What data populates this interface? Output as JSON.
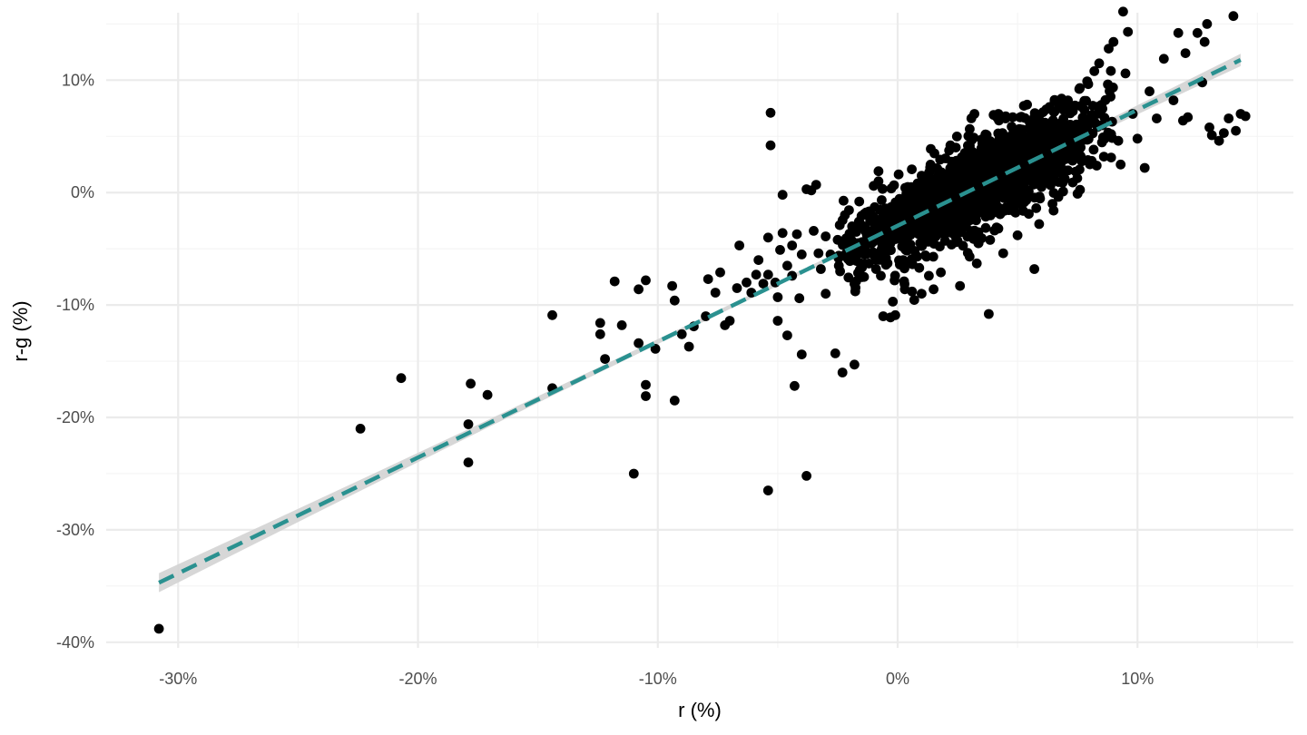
{
  "chart_data": {
    "type": "scatter",
    "title": "",
    "xlabel": "r (%)",
    "ylabel": "r-g (%)",
    "xlim": [
      -33,
      16.5
    ],
    "ylim": [
      -40.5,
      16
    ],
    "x_ticks": [
      {
        "value": -30,
        "label": "-30%"
      },
      {
        "value": -20,
        "label": "-20%"
      },
      {
        "value": -10,
        "label": "-10%"
      },
      {
        "value": 0,
        "label": "0%"
      },
      {
        "value": 10,
        "label": "10%"
      }
    ],
    "y_ticks": [
      {
        "value": -40,
        "label": "-40%"
      },
      {
        "value": -30,
        "label": "-30%"
      },
      {
        "value": -20,
        "label": "-20%"
      },
      {
        "value": -10,
        "label": "-10%"
      },
      {
        "value": 0,
        "label": "0%"
      },
      {
        "value": 10,
        "label": "10%"
      }
    ],
    "x_minor_grid": [
      -25,
      -15,
      -5,
      5,
      15
    ],
    "y_minor_grid": [
      -35,
      -25,
      -15,
      -5,
      5,
      15
    ],
    "grid": true,
    "legend": "none",
    "colors": {
      "points": "#000000",
      "fit_line": "#2a9190",
      "ribbon": "#d3d3d3",
      "grid_major": "#ebebeb",
      "grid_minor": "#f4f4f4",
      "tick_text": "#4d4d4d"
    },
    "fit": {
      "style": "dashed",
      "from": {
        "x": -30.8,
        "y": -34.7
      },
      "to": {
        "x": 14.3,
        "y": 11.8
      },
      "ribbon_halfwidth": [
        0.85,
        0.2,
        0.55
      ]
    },
    "point_seed": 1729,
    "cloud": {
      "n": 1650,
      "x_mean": 3.3,
      "x_sd": 2.4,
      "x_min": -2.5,
      "x_max": 9.0,
      "slope": 1.03,
      "intercept": -2.8,
      "resid_sd": 1.8
    },
    "points": [
      [
        -30.8,
        -38.8
      ],
      [
        -22.4,
        -21.0
      ],
      [
        -20.7,
        -16.5
      ],
      [
        -17.8,
        -17.0
      ],
      [
        -17.9,
        -20.6
      ],
      [
        -17.9,
        -24.0
      ],
      [
        -17.1,
        -18.0
      ],
      [
        -14.4,
        -10.9
      ],
      [
        -14.4,
        -17.4
      ],
      [
        -12.4,
        -11.6
      ],
      [
        -12.4,
        -12.6
      ],
      [
        -12.2,
        -14.8
      ],
      [
        -11.8,
        -7.9
      ],
      [
        -11.5,
        -11.8
      ],
      [
        -11.0,
        -25.0
      ],
      [
        -10.8,
        -8.6
      ],
      [
        -10.8,
        -13.4
      ],
      [
        -10.5,
        -7.8
      ],
      [
        -10.5,
        -17.1
      ],
      [
        -10.5,
        -18.1
      ],
      [
        -10.1,
        -13.9
      ],
      [
        -9.4,
        -8.3
      ],
      [
        -9.3,
        -9.6
      ],
      [
        -9.3,
        -18.5
      ],
      [
        -9.0,
        -12.6
      ],
      [
        -8.7,
        -13.7
      ],
      [
        -8.5,
        -11.9
      ],
      [
        -8.0,
        -11.0
      ],
      [
        -7.9,
        -7.7
      ],
      [
        -7.6,
        -8.9
      ],
      [
        -7.4,
        -7.1
      ],
      [
        -7.2,
        -11.8
      ],
      [
        -7.0,
        -11.4
      ],
      [
        -6.7,
        -8.5
      ],
      [
        -6.6,
        -4.7
      ],
      [
        -6.3,
        -8.0
      ],
      [
        -6.1,
        -8.9
      ],
      [
        -5.9,
        -7.3
      ],
      [
        -5.8,
        -6.0
      ],
      [
        -5.6,
        -8.1
      ],
      [
        -5.4,
        -4.0
      ],
      [
        -5.4,
        -7.3
      ],
      [
        -5.4,
        -26.5
      ],
      [
        -5.3,
        4.2
      ],
      [
        -5.3,
        7.1
      ],
      [
        -5.1,
        -8.0
      ],
      [
        -5.0,
        -11.4
      ],
      [
        -5.0,
        -9.3
      ],
      [
        -4.9,
        -5.1
      ],
      [
        -4.8,
        -0.2
      ],
      [
        -4.8,
        -3.6
      ],
      [
        -4.6,
        -6.5
      ],
      [
        -4.6,
        -12.7
      ],
      [
        -4.4,
        -4.7
      ],
      [
        -4.4,
        -7.4
      ],
      [
        -4.3,
        -17.2
      ],
      [
        -4.2,
        -3.7
      ],
      [
        -4.1,
        -9.4
      ],
      [
        -4.0,
        -5.5
      ],
      [
        -4.0,
        -14.4
      ],
      [
        -3.8,
        0.3
      ],
      [
        -3.8,
        -25.2
      ],
      [
        -3.6,
        0.2
      ],
      [
        -3.5,
        -3.4
      ],
      [
        -3.4,
        0.7
      ],
      [
        -3.3,
        -5.4
      ],
      [
        -3.2,
        -6.8
      ],
      [
        -3.0,
        -9.0
      ],
      [
        -3.0,
        -3.9
      ],
      [
        -2.8,
        -5.5
      ],
      [
        -2.6,
        -14.3
      ],
      [
        -2.5,
        -4.2
      ],
      [
        -2.4,
        -7.0
      ],
      [
        -2.3,
        -16.0
      ],
      [
        -2.2,
        -2.0
      ],
      [
        -1.9,
        -3.0
      ],
      [
        -1.8,
        -15.3
      ],
      [
        -1.8,
        -5.6
      ],
      [
        -1.6,
        -0.8
      ],
      [
        -1.4,
        -7.5
      ],
      [
        -1.3,
        -1.9
      ],
      [
        -1.2,
        -4.5
      ],
      [
        -1.0,
        0.6
      ],
      [
        -0.9,
        -5.9
      ],
      [
        -0.9,
        -6.8
      ],
      [
        -0.8,
        1.0
      ],
      [
        -0.8,
        1.9
      ],
      [
        -0.7,
        -7.4
      ],
      [
        -0.6,
        -3.5
      ],
      [
        -0.6,
        -11.0
      ],
      [
        -0.5,
        -1.6
      ],
      [
        -0.3,
        -4.5
      ],
      [
        -0.3,
        -11.1
      ],
      [
        -0.2,
        -9.7
      ],
      [
        -0.1,
        -10.9
      ],
      [
        0.2,
        -0.8
      ],
      [
        0.3,
        -8.6
      ],
      [
        0.5,
        -2.4
      ],
      [
        0.6,
        -8.8
      ],
      [
        0.9,
        -6.7
      ],
      [
        1.0,
        -9.0
      ],
      [
        1.3,
        -1.2
      ],
      [
        1.3,
        -7.4
      ],
      [
        1.5,
        -8.6
      ],
      [
        1.8,
        -3.3
      ],
      [
        1.8,
        -7.1
      ],
      [
        2.3,
        -1.1
      ],
      [
        2.6,
        -8.3
      ],
      [
        3.0,
        -5.7
      ],
      [
        3.2,
        7.0
      ],
      [
        3.3,
        -6.3
      ],
      [
        3.8,
        -10.8
      ],
      [
        4.2,
        -3.2
      ],
      [
        4.2,
        7.0
      ],
      [
        4.4,
        -5.4
      ],
      [
        4.5,
        6.6
      ],
      [
        5.0,
        -1.0
      ],
      [
        5.0,
        -3.8
      ],
      [
        5.5,
        2.3
      ],
      [
        5.7,
        -6.8
      ],
      [
        5.9,
        -2.8
      ],
      [
        6.0,
        0.5
      ],
      [
        6.5,
        -1.6
      ],
      [
        6.9,
        0.1
      ],
      [
        7.1,
        8.2
      ],
      [
        7.3,
        3.1
      ],
      [
        7.3,
        0.9
      ],
      [
        7.5,
        -0.1
      ],
      [
        7.9,
        4.7
      ],
      [
        8.2,
        10.8
      ],
      [
        8.3,
        2.4
      ],
      [
        8.4,
        11.5
      ],
      [
        8.6,
        3.2
      ],
      [
        8.8,
        12.8
      ],
      [
        8.9,
        5.2
      ],
      [
        9.0,
        13.4
      ],
      [
        9.2,
        4.6
      ],
      [
        9.3,
        2.5
      ],
      [
        9.4,
        16.1
      ],
      [
        9.5,
        10.6
      ],
      [
        9.6,
        14.3
      ],
      [
        9.8,
        7.0
      ],
      [
        10.0,
        4.8
      ],
      [
        10.3,
        2.2
      ],
      [
        10.5,
        9.0
      ],
      [
        10.8,
        6.6
      ],
      [
        11.1,
        11.9
      ],
      [
        11.5,
        8.2
      ],
      [
        11.7,
        14.2
      ],
      [
        11.9,
        6.4
      ],
      [
        12.0,
        12.4
      ],
      [
        12.1,
        6.7
      ],
      [
        12.5,
        14.2
      ],
      [
        12.7,
        9.8
      ],
      [
        12.8,
        13.4
      ],
      [
        12.9,
        15.0
      ],
      [
        13.0,
        5.8
      ],
      [
        13.1,
        5.1
      ],
      [
        13.4,
        4.6
      ],
      [
        13.6,
        5.3
      ],
      [
        13.8,
        6.6
      ],
      [
        14.0,
        15.7
      ],
      [
        14.1,
        5.5
      ],
      [
        14.3,
        7.0
      ],
      [
        14.5,
        6.8
      ],
      [
        0.4,
        -2.8
      ],
      [
        -1.9,
        -4.3
      ],
      [
        -0.5,
        -1.4
      ],
      [
        1.0,
        1.5
      ],
      [
        2.2,
        4.2
      ],
      [
        3.1,
        4.7
      ],
      [
        4.0,
        6.9
      ],
      [
        5.2,
        5.6
      ],
      [
        6.2,
        7.4
      ],
      [
        7.0,
        7.8
      ],
      [
        7.6,
        9.3
      ],
      [
        7.9,
        9.9
      ],
      [
        8.1,
        6.9
      ],
      [
        6.7,
        3.8
      ],
      [
        5.9,
        2.9
      ]
    ]
  }
}
